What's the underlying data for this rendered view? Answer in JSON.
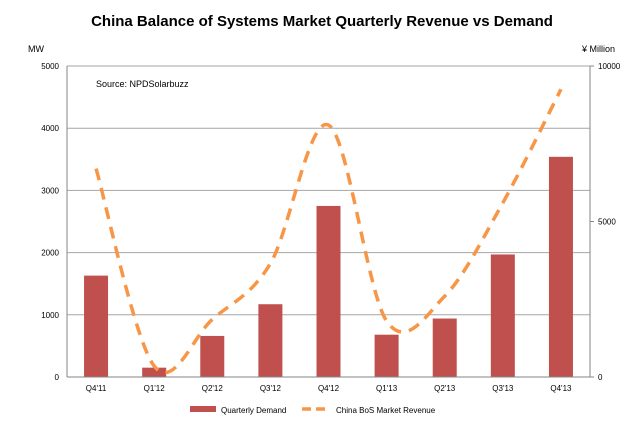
{
  "chart_data": {
    "type": "bar",
    "title": "China Balance of Systems Market Quarterly Revenue vs Demand",
    "annotation": "Source: NPDSolarbuzz",
    "ylabel_left": "MW",
    "ylabel_right": "¥ Million",
    "categories": [
      "Q4'11",
      "Q1'12",
      "Q2'12",
      "Q3'12",
      "Q4'12",
      "Q1'13",
      "Q2'13",
      "Q3'13",
      "Q4'13"
    ],
    "ylim_left": [
      0,
      5000
    ],
    "yticks_left": [
      0,
      1000,
      2000,
      3000,
      4000,
      5000
    ],
    "ylim_right": [
      0,
      10000
    ],
    "yticks_right": [
      0,
      5000,
      10000
    ],
    "grid": true,
    "legend_position": "bottom",
    "series": [
      {
        "name": "Quarterly Demand",
        "type": "bar",
        "axis": "left",
        "color": "#c0504d",
        "values": [
          1630,
          150,
          660,
          1170,
          2750,
          680,
          940,
          1970,
          3540
        ]
      },
      {
        "name": "China BoS Market Revenue",
        "type": "line",
        "style": "dashed",
        "axis": "right",
        "color": "#f79646",
        "values": [
          6700,
          350,
          1850,
          3650,
          8100,
          1800,
          2600,
          5600,
          9250
        ]
      }
    ]
  }
}
